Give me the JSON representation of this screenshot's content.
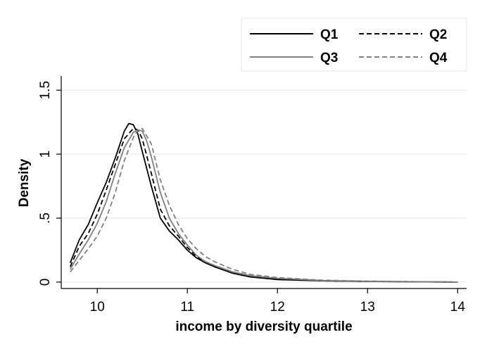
{
  "chart_data": {
    "type": "line",
    "title": "",
    "xlabel": "income by diversity quartile",
    "ylabel": "Density",
    "xlim": [
      9.6,
      14.1
    ],
    "ylim": [
      -0.05,
      1.6
    ],
    "x_ticks": [
      10,
      11,
      12,
      13,
      14
    ],
    "x_tick_labels": [
      "10",
      "11",
      "12",
      "13",
      "14"
    ],
    "y_ticks": [
      0,
      0.5,
      1,
      1.5
    ],
    "y_tick_labels": [
      "0",
      ".5",
      "1",
      "1.5"
    ],
    "grid": true,
    "legend_position": "top-right",
    "series": [
      {
        "name": "Q1",
        "color": "#000000",
        "dash": "solid",
        "x": [
          9.7,
          9.8,
          9.9,
          10.0,
          10.1,
          10.2,
          10.3,
          10.35,
          10.4,
          10.45,
          10.5,
          10.6,
          10.7,
          10.8,
          10.9,
          11.0,
          11.1,
          11.2,
          11.3,
          11.5,
          11.7,
          12.0,
          12.5,
          13.0,
          14.0
        ],
        "y": [
          0.15,
          0.33,
          0.45,
          0.62,
          0.78,
          0.97,
          1.18,
          1.24,
          1.23,
          1.16,
          1.02,
          0.75,
          0.5,
          0.4,
          0.33,
          0.25,
          0.19,
          0.15,
          0.12,
          0.07,
          0.04,
          0.02,
          0.01,
          0.005,
          0.0
        ]
      },
      {
        "name": "Q2",
        "color": "#000000",
        "dash": "dashed",
        "x": [
          9.7,
          9.8,
          9.9,
          10.0,
          10.1,
          10.2,
          10.3,
          10.4,
          10.45,
          10.5,
          10.6,
          10.7,
          10.8,
          10.9,
          11.0,
          11.1,
          11.2,
          11.3,
          11.5,
          11.7,
          12.0,
          12.5,
          13.0,
          14.0
        ],
        "y": [
          0.12,
          0.28,
          0.38,
          0.53,
          0.72,
          0.92,
          1.12,
          1.2,
          1.19,
          1.12,
          0.85,
          0.57,
          0.44,
          0.36,
          0.27,
          0.2,
          0.16,
          0.13,
          0.08,
          0.05,
          0.025,
          0.01,
          0.005,
          0.0
        ]
      },
      {
        "name": "Q3",
        "color": "#808080",
        "dash": "solid",
        "x": [
          9.7,
          9.8,
          9.9,
          10.0,
          10.1,
          10.2,
          10.3,
          10.4,
          10.45,
          10.5,
          10.55,
          10.6,
          10.7,
          10.8,
          10.9,
          11.0,
          11.1,
          11.2,
          11.3,
          11.5,
          11.7,
          12.0,
          12.5,
          13.0,
          14.0
        ],
        "y": [
          0.1,
          0.22,
          0.33,
          0.46,
          0.63,
          0.85,
          1.05,
          1.17,
          1.19,
          1.18,
          1.1,
          0.98,
          0.7,
          0.5,
          0.38,
          0.29,
          0.21,
          0.16,
          0.13,
          0.08,
          0.05,
          0.03,
          0.012,
          0.006,
          0.0
        ]
      },
      {
        "name": "Q4",
        "color": "#808080",
        "dash": "dashed",
        "x": [
          9.7,
          9.8,
          9.9,
          10.0,
          10.1,
          10.2,
          10.3,
          10.4,
          10.45,
          10.5,
          10.6,
          10.7,
          10.8,
          10.9,
          11.0,
          11.1,
          11.2,
          11.3,
          11.5,
          11.7,
          12.0,
          12.5,
          13.0,
          14.0
        ],
        "y": [
          0.08,
          0.17,
          0.26,
          0.36,
          0.5,
          0.7,
          0.95,
          1.13,
          1.19,
          1.2,
          1.08,
          0.8,
          0.6,
          0.45,
          0.34,
          0.26,
          0.2,
          0.16,
          0.1,
          0.06,
          0.035,
          0.015,
          0.008,
          0.0
        ]
      }
    ]
  }
}
